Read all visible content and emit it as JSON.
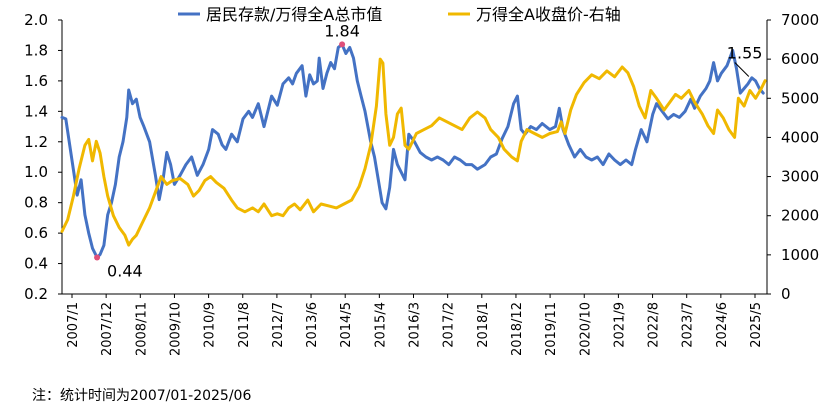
{
  "chart_data": {
    "type": "line",
    "title": "",
    "colors": {
      "ratio": "#4472C4",
      "index": "#F0B800",
      "marker": "#E0507A"
    },
    "legend": {
      "position": "top",
      "items": [
        "居民存款/万得全A总市值",
        "万得全A收盘价-右轴"
      ]
    },
    "y_left": {
      "ticks": [
        "2.0",
        "1.8",
        "1.6",
        "1.4",
        "1.2",
        "1.0",
        "0.8",
        "0.6",
        "0.4",
        "0.2"
      ],
      "min": 0.2,
      "max": 2.0
    },
    "y_right": {
      "ticks": [
        "7000",
        "6000",
        "5000",
        "4000",
        "3000",
        "2000",
        "1000",
        "0"
      ],
      "min": 0,
      "max": 7000
    },
    "x_ticks": [
      "2007/1",
      "2007/12",
      "2008/11",
      "2009/10",
      "2010/9",
      "2011/8",
      "2012/7",
      "2013/6",
      "2014/5",
      "2015/4",
      "2016/3",
      "2017/2",
      "2018/1",
      "2018/12",
      "2019/11",
      "2020/10",
      "2021/9",
      "2022/8",
      "2023/7",
      "2024/6",
      "2025/5"
    ],
    "series": [
      {
        "name": "居民存款/万得全A总市值",
        "axis": "left",
        "points": [
          [
            2007.0,
            1.36
          ],
          [
            2007.1,
            1.35
          ],
          [
            2007.25,
            1.1
          ],
          [
            2007.4,
            0.85
          ],
          [
            2007.5,
            0.95
          ],
          [
            2007.6,
            0.72
          ],
          [
            2007.7,
            0.6
          ],
          [
            2007.8,
            0.5
          ],
          [
            2007.92,
            0.44
          ],
          [
            2008.0,
            0.46
          ],
          [
            2008.1,
            0.52
          ],
          [
            2008.2,
            0.72
          ],
          [
            2008.3,
            0.8
          ],
          [
            2008.4,
            0.92
          ],
          [
            2008.5,
            1.1
          ],
          [
            2008.6,
            1.2
          ],
          [
            2008.7,
            1.36
          ],
          [
            2008.75,
            1.54
          ],
          [
            2008.85,
            1.45
          ],
          [
            2008.95,
            1.48
          ],
          [
            2009.05,
            1.36
          ],
          [
            2009.15,
            1.3
          ],
          [
            2009.3,
            1.2
          ],
          [
            2009.45,
            0.98
          ],
          [
            2009.55,
            0.82
          ],
          [
            2009.65,
            0.95
          ],
          [
            2009.75,
            1.13
          ],
          [
            2009.85,
            1.05
          ],
          [
            2009.95,
            0.92
          ],
          [
            2010.1,
            0.98
          ],
          [
            2010.25,
            1.05
          ],
          [
            2010.4,
            1.1
          ],
          [
            2010.55,
            0.98
          ],
          [
            2010.7,
            1.05
          ],
          [
            2010.85,
            1.15
          ],
          [
            2010.95,
            1.28
          ],
          [
            2011.1,
            1.25
          ],
          [
            2011.2,
            1.18
          ],
          [
            2011.3,
            1.15
          ],
          [
            2011.45,
            1.25
          ],
          [
            2011.6,
            1.2
          ],
          [
            2011.75,
            1.35
          ],
          [
            2011.9,
            1.4
          ],
          [
            2012.0,
            1.36
          ],
          [
            2012.15,
            1.45
          ],
          [
            2012.3,
            1.3
          ],
          [
            2012.5,
            1.5
          ],
          [
            2012.65,
            1.44
          ],
          [
            2012.8,
            1.58
          ],
          [
            2012.95,
            1.62
          ],
          [
            2013.05,
            1.58
          ],
          [
            2013.15,
            1.65
          ],
          [
            2013.3,
            1.7
          ],
          [
            2013.4,
            1.5
          ],
          [
            2013.5,
            1.64
          ],
          [
            2013.6,
            1.58
          ],
          [
            2013.7,
            1.6
          ],
          [
            2013.75,
            1.75
          ],
          [
            2013.85,
            1.55
          ],
          [
            2013.95,
            1.65
          ],
          [
            2014.05,
            1.72
          ],
          [
            2014.15,
            1.68
          ],
          [
            2014.25,
            1.82
          ],
          [
            2014.35,
            1.84
          ],
          [
            2014.45,
            1.78
          ],
          [
            2014.55,
            1.82
          ],
          [
            2014.65,
            1.75
          ],
          [
            2014.75,
            1.6
          ],
          [
            2014.85,
            1.5
          ],
          [
            2014.95,
            1.4
          ],
          [
            2015.1,
            1.2
          ],
          [
            2015.2,
            1.1
          ],
          [
            2015.3,
            0.95
          ],
          [
            2015.4,
            0.8
          ],
          [
            2015.5,
            0.76
          ],
          [
            2015.6,
            0.9
          ],
          [
            2015.7,
            1.15
          ],
          [
            2015.8,
            1.05
          ],
          [
            2015.9,
            1.0
          ],
          [
            2016.0,
            0.95
          ],
          [
            2016.1,
            1.25
          ],
          [
            2016.25,
            1.2
          ],
          [
            2016.4,
            1.13
          ],
          [
            2016.55,
            1.1
          ],
          [
            2016.7,
            1.08
          ],
          [
            2016.85,
            1.1
          ],
          [
            2017.0,
            1.08
          ],
          [
            2017.15,
            1.05
          ],
          [
            2017.3,
            1.1
          ],
          [
            2017.45,
            1.08
          ],
          [
            2017.6,
            1.05
          ],
          [
            2017.75,
            1.05
          ],
          [
            2017.9,
            1.02
          ],
          [
            2018.1,
            1.05
          ],
          [
            2018.25,
            1.1
          ],
          [
            2018.4,
            1.12
          ],
          [
            2018.55,
            1.22
          ],
          [
            2018.7,
            1.3
          ],
          [
            2018.85,
            1.45
          ],
          [
            2018.95,
            1.5
          ],
          [
            2019.05,
            1.28
          ],
          [
            2019.15,
            1.25
          ],
          [
            2019.3,
            1.3
          ],
          [
            2019.45,
            1.28
          ],
          [
            2019.6,
            1.32
          ],
          [
            2019.8,
            1.28
          ],
          [
            2019.95,
            1.3
          ],
          [
            2020.05,
            1.42
          ],
          [
            2020.15,
            1.28
          ],
          [
            2020.3,
            1.18
          ],
          [
            2020.45,
            1.1
          ],
          [
            2020.6,
            1.15
          ],
          [
            2020.75,
            1.1
          ],
          [
            2020.9,
            1.08
          ],
          [
            2021.05,
            1.1
          ],
          [
            2021.2,
            1.05
          ],
          [
            2021.35,
            1.12
          ],
          [
            2021.5,
            1.08
          ],
          [
            2021.65,
            1.05
          ],
          [
            2021.8,
            1.08
          ],
          [
            2021.95,
            1.05
          ],
          [
            2022.05,
            1.15
          ],
          [
            2022.2,
            1.28
          ],
          [
            2022.35,
            1.2
          ],
          [
            2022.5,
            1.38
          ],
          [
            2022.6,
            1.45
          ],
          [
            2022.75,
            1.4
          ],
          [
            2022.9,
            1.35
          ],
          [
            2023.05,
            1.38
          ],
          [
            2023.2,
            1.36
          ],
          [
            2023.35,
            1.4
          ],
          [
            2023.5,
            1.48
          ],
          [
            2023.6,
            1.42
          ],
          [
            2023.75,
            1.5
          ],
          [
            2023.9,
            1.55
          ],
          [
            2024.0,
            1.6
          ],
          [
            2024.1,
            1.72
          ],
          [
            2024.2,
            1.6
          ],
          [
            2024.3,
            1.65
          ],
          [
            2024.45,
            1.7
          ],
          [
            2024.6,
            1.8
          ],
          [
            2024.7,
            1.68
          ],
          [
            2024.8,
            1.52
          ],
          [
            2024.9,
            1.55
          ],
          [
            2025.0,
            1.58
          ],
          [
            2025.1,
            1.62
          ],
          [
            2025.2,
            1.6
          ],
          [
            2025.3,
            1.55
          ],
          [
            2025.4,
            1.52
          ]
        ]
      },
      {
        "name": "万得全A收盘价-右轴",
        "axis": "right",
        "points": [
          [
            2007.0,
            1600
          ],
          [
            2007.15,
            1900
          ],
          [
            2007.3,
            2500
          ],
          [
            2007.45,
            3200
          ],
          [
            2007.6,
            3800
          ],
          [
            2007.7,
            3950
          ],
          [
            2007.8,
            3400
          ],
          [
            2007.9,
            3900
          ],
          [
            2008.0,
            3600
          ],
          [
            2008.1,
            3000
          ],
          [
            2008.2,
            2500
          ],
          [
            2008.35,
            2000
          ],
          [
            2008.5,
            1700
          ],
          [
            2008.65,
            1500
          ],
          [
            2008.75,
            1250
          ],
          [
            2008.85,
            1400
          ],
          [
            2008.95,
            1500
          ],
          [
            2009.1,
            1800
          ],
          [
            2009.3,
            2200
          ],
          [
            2009.45,
            2600
          ],
          [
            2009.6,
            3000
          ],
          [
            2009.75,
            2800
          ],
          [
            2009.9,
            2900
          ],
          [
            2010.1,
            2950
          ],
          [
            2010.3,
            2800
          ],
          [
            2010.45,
            2500
          ],
          [
            2010.6,
            2650
          ],
          [
            2010.75,
            2900
          ],
          [
            2010.9,
            3000
          ],
          [
            2011.05,
            2850
          ],
          [
            2011.25,
            2700
          ],
          [
            2011.45,
            2400
          ],
          [
            2011.6,
            2200
          ],
          [
            2011.8,
            2100
          ],
          [
            2012.0,
            2200
          ],
          [
            2012.15,
            2100
          ],
          [
            2012.3,
            2300
          ],
          [
            2012.5,
            2000
          ],
          [
            2012.65,
            2050
          ],
          [
            2012.8,
            2000
          ],
          [
            2012.95,
            2200
          ],
          [
            2013.1,
            2300
          ],
          [
            2013.25,
            2150
          ],
          [
            2013.45,
            2400
          ],
          [
            2013.6,
            2100
          ],
          [
            2013.8,
            2300
          ],
          [
            2014.0,
            2250
          ],
          [
            2014.2,
            2200
          ],
          [
            2014.4,
            2300
          ],
          [
            2014.6,
            2400
          ],
          [
            2014.8,
            2750
          ],
          [
            2014.95,
            3200
          ],
          [
            2015.1,
            3800
          ],
          [
            2015.25,
            4800
          ],
          [
            2015.35,
            6000
          ],
          [
            2015.42,
            5900
          ],
          [
            2015.5,
            4600
          ],
          [
            2015.6,
            3800
          ],
          [
            2015.7,
            4000
          ],
          [
            2015.8,
            4600
          ],
          [
            2015.9,
            4750
          ],
          [
            2016.0,
            3800
          ],
          [
            2016.1,
            3700
          ],
          [
            2016.3,
            4100
          ],
          [
            2016.5,
            4200
          ],
          [
            2016.7,
            4300
          ],
          [
            2016.9,
            4500
          ],
          [
            2017.1,
            4400
          ],
          [
            2017.3,
            4300
          ],
          [
            2017.5,
            4200
          ],
          [
            2017.7,
            4500
          ],
          [
            2017.9,
            4650
          ],
          [
            2018.1,
            4500
          ],
          [
            2018.25,
            4200
          ],
          [
            2018.45,
            4000
          ],
          [
            2018.6,
            3700
          ],
          [
            2018.8,
            3500
          ],
          [
            2018.95,
            3400
          ],
          [
            2019.05,
            3900
          ],
          [
            2019.2,
            4200
          ],
          [
            2019.4,
            4100
          ],
          [
            2019.6,
            4000
          ],
          [
            2019.8,
            4100
          ],
          [
            2020.0,
            4150
          ],
          [
            2020.1,
            4400
          ],
          [
            2020.2,
            4100
          ],
          [
            2020.35,
            4700
          ],
          [
            2020.5,
            5100
          ],
          [
            2020.7,
            5400
          ],
          [
            2020.9,
            5600
          ],
          [
            2021.1,
            5500
          ],
          [
            2021.3,
            5700
          ],
          [
            2021.5,
            5550
          ],
          [
            2021.7,
            5800
          ],
          [
            2021.85,
            5650
          ],
          [
            2022.0,
            5300
          ],
          [
            2022.15,
            4800
          ],
          [
            2022.3,
            4500
          ],
          [
            2022.45,
            5200
          ],
          [
            2022.6,
            5000
          ],
          [
            2022.8,
            4700
          ],
          [
            2022.95,
            4900
          ],
          [
            2023.1,
            5100
          ],
          [
            2023.25,
            5000
          ],
          [
            2023.45,
            5200
          ],
          [
            2023.6,
            4900
          ],
          [
            2023.8,
            4600
          ],
          [
            2023.95,
            4300
          ],
          [
            2024.1,
            4100
          ],
          [
            2024.2,
            4700
          ],
          [
            2024.35,
            4500
          ],
          [
            2024.5,
            4200
          ],
          [
            2024.65,
            4000
          ],
          [
            2024.75,
            5000
          ],
          [
            2024.9,
            4800
          ],
          [
            2025.05,
            5200
          ],
          [
            2025.2,
            5000
          ],
          [
            2025.35,
            5250
          ],
          [
            2025.45,
            5450
          ]
        ]
      }
    ],
    "annotations": [
      {
        "text": "1.84",
        "x": 2014.35,
        "y": 1.84
      },
      {
        "text": "0.44",
        "x": 2007.92,
        "y": 0.44
      },
      {
        "text": "1.55",
        "x": 2024.55,
        "y": 1.55
      }
    ],
    "note": "注：统计时间为2007/01-2025/06"
  }
}
